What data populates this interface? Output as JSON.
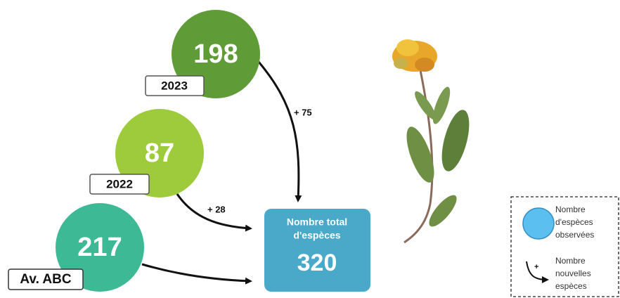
{
  "nodes": [
    {
      "label": "2023",
      "value": 198,
      "added": "+ 75"
    },
    {
      "label": "2022",
      "value": 87,
      "added": "+ 28"
    },
    {
      "label": "Av. ABC",
      "value": 217
    }
  ],
  "total": {
    "title": [
      "Nombre total",
      "d'espèces"
    ],
    "value": 320
  },
  "legend": {
    "observed": [
      "Nombre",
      "d'espèces",
      "observées"
    ],
    "new": [
      "Nombre",
      "nouvelles",
      "espèces"
    ],
    "icon": "+"
  }
}
